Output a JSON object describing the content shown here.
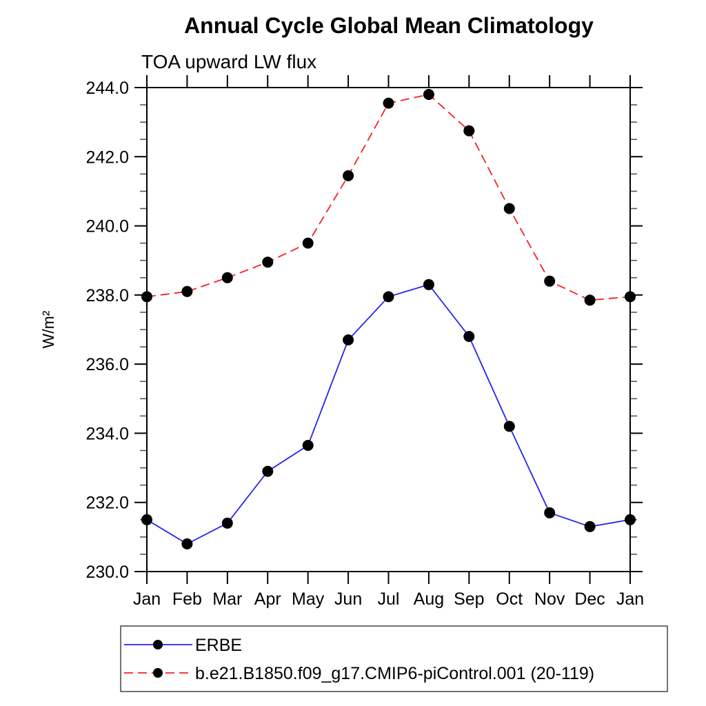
{
  "chart_data": {
    "type": "line",
    "title": "Annual Cycle Global Mean Climatology",
    "subtitle": "TOA upward LW flux",
    "ylabel": "W/m²",
    "categories": [
      "Jan",
      "Feb",
      "Mar",
      "Apr",
      "May",
      "Jun",
      "Jul",
      "Aug",
      "Sep",
      "Oct",
      "Nov",
      "Dec",
      "Jan"
    ],
    "ylim": [
      230.0,
      244.0
    ],
    "ytick_major_step": 2.0,
    "ytick_minor_step": 0.5,
    "grid": false,
    "legend_position": "bottom-left",
    "frame_color": "#000000",
    "marker_color": "#000000",
    "series": [
      {
        "name": "ERBE",
        "color": "#2323ee",
        "line_style": "solid",
        "marker": "circle",
        "values": [
          231.5,
          230.8,
          231.4,
          232.9,
          233.65,
          236.7,
          237.95,
          238.3,
          236.8,
          234.2,
          231.7,
          231.3,
          231.5
        ]
      },
      {
        "name": "b.e21.B1850.f09_g17.CMIP6-piControl.001 (20-119)",
        "color": "#f52020",
        "line_style": "dashed",
        "marker": "circle",
        "values": [
          237.95,
          238.1,
          238.5,
          238.95,
          239.5,
          241.45,
          243.55,
          243.8,
          242.75,
          240.5,
          238.4,
          237.85,
          237.95
        ]
      }
    ]
  }
}
